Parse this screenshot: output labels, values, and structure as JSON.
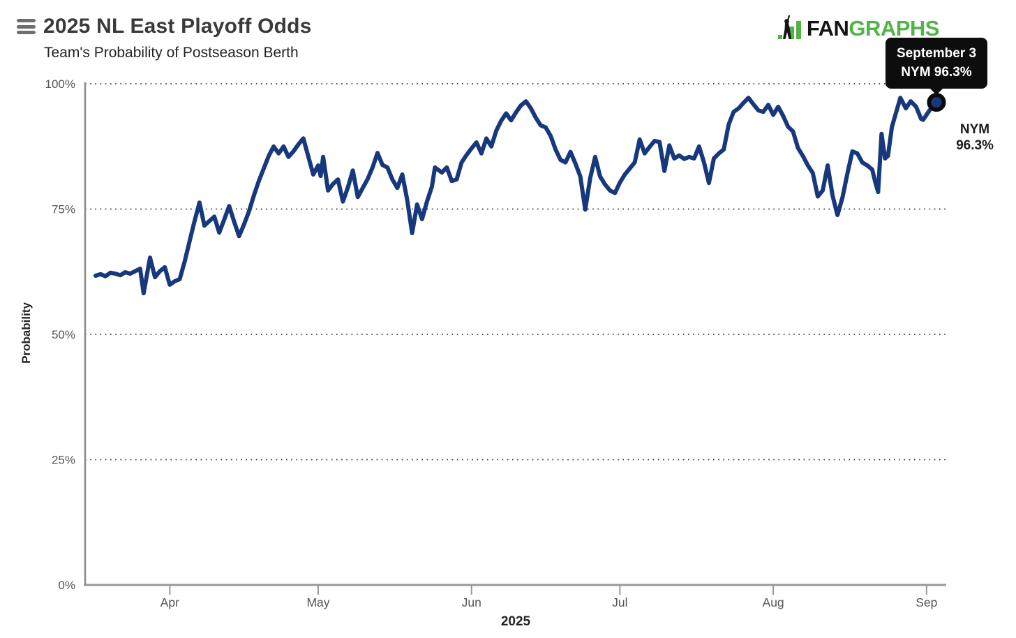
{
  "header": {
    "title": "2025 NL East Playoff Odds",
    "subtitle": "Team's Probability of Postseason Berth",
    "logo_fan": "FAN",
    "logo_graphs": "GRAPHS"
  },
  "tooltip": {
    "line1": "September 3",
    "line2": "NYM 96.3%"
  },
  "end_label": {
    "team": "NYM",
    "value": "96.3%"
  },
  "colors": {
    "line": "#17387d",
    "marker_ring": "#0a0a0a",
    "logo_green": "#52b447",
    "logo_black": "#151515",
    "grid_dots": "#333333",
    "x_axis": "#999999",
    "y_axis": "#8a8a8a",
    "tick_text": "#555555",
    "tooltip_bg": "#0d0d0d"
  },
  "chart_data": {
    "type": "line",
    "title": "2025 NL East Playoff Odds",
    "subtitle": "Team's Probability of Postseason Berth",
    "ylabel": "Probability",
    "xlabel": "2025",
    "ylim": [
      0,
      100
    ],
    "grid": "horizontal dotted at 25/50/75/100",
    "legend_position": "none",
    "y_ticks": [
      {
        "label": "0%",
        "value": 0
      },
      {
        "label": "25%",
        "value": 25
      },
      {
        "label": "50%",
        "value": 50
      },
      {
        "label": "75%",
        "value": 75
      },
      {
        "label": "100%",
        "value": 100
      }
    ],
    "x_ticks": [
      {
        "label": "Apr",
        "day": 15
      },
      {
        "label": "May",
        "day": 45
      },
      {
        "label": "Jun",
        "day": 76
      },
      {
        "label": "Jul",
        "day": 106
      },
      {
        "label": "Aug",
        "day": 137
      },
      {
        "label": "Sep",
        "day": 168
      }
    ],
    "x_domain_days": [
      0,
      170
    ],
    "series": [
      {
        "name": "NYM",
        "color": "#17387d",
        "last_point_label": "September 3",
        "last_value": 96.3,
        "points": [
          [
            0,
            61.7
          ],
          [
            1,
            62.0
          ],
          [
            2,
            61.6
          ],
          [
            3,
            62.3
          ],
          [
            4,
            62.1
          ],
          [
            5,
            61.8
          ],
          [
            6,
            62.4
          ],
          [
            7,
            62.1
          ],
          [
            8,
            62.6
          ],
          [
            9,
            63.1
          ],
          [
            9.7,
            58.2
          ],
          [
            11,
            65.3
          ],
          [
            12,
            61.4
          ],
          [
            13,
            62.6
          ],
          [
            14,
            63.4
          ],
          [
            15,
            59.9
          ],
          [
            16,
            60.6
          ],
          [
            17,
            61.0
          ],
          [
            18,
            64.5
          ],
          [
            19,
            68.6
          ],
          [
            20,
            72.6
          ],
          [
            21,
            76.3
          ],
          [
            22,
            71.7
          ],
          [
            23,
            72.6
          ],
          [
            24,
            73.5
          ],
          [
            25,
            70.3
          ],
          [
            26,
            72.9
          ],
          [
            27,
            75.6
          ],
          [
            28,
            72.5
          ],
          [
            29,
            69.6
          ],
          [
            30,
            71.9
          ],
          [
            31,
            74.5
          ],
          [
            32,
            77.7
          ],
          [
            33,
            80.6
          ],
          [
            34,
            83.1
          ],
          [
            35,
            85.6
          ],
          [
            36,
            87.5
          ],
          [
            37,
            86.1
          ],
          [
            38,
            87.5
          ],
          [
            39,
            85.4
          ],
          [
            40,
            86.5
          ],
          [
            41,
            87.9
          ],
          [
            42,
            89.1
          ],
          [
            43,
            85.5
          ],
          [
            44,
            81.9
          ],
          [
            45,
            83.7
          ],
          [
            45.5,
            81.6
          ],
          [
            46,
            85.4
          ],
          [
            47,
            78.7
          ],
          [
            48,
            80.0
          ],
          [
            49,
            80.9
          ],
          [
            50,
            76.5
          ],
          [
            51,
            79.3
          ],
          [
            52,
            82.7
          ],
          [
            53,
            77.4
          ],
          [
            54,
            79.2
          ],
          [
            55,
            81.0
          ],
          [
            56,
            83.3
          ],
          [
            57,
            86.2
          ],
          [
            58,
            83.8
          ],
          [
            59,
            83.3
          ],
          [
            60,
            80.9
          ],
          [
            61,
            79.2
          ],
          [
            62,
            81.9
          ],
          [
            63,
            76.8
          ],
          [
            64,
            70.2
          ],
          [
            65,
            75.9
          ],
          [
            66,
            73.0
          ],
          [
            67,
            76.5
          ],
          [
            68,
            79.5
          ],
          [
            68.6,
            83.3
          ],
          [
            70,
            82.3
          ],
          [
            71,
            83.3
          ],
          [
            72,
            80.6
          ],
          [
            73,
            80.9
          ],
          [
            74,
            84.3
          ],
          [
            75,
            85.8
          ],
          [
            76,
            87.1
          ],
          [
            77,
            88.3
          ],
          [
            78,
            86.1
          ],
          [
            79,
            89.1
          ],
          [
            80,
            87.5
          ],
          [
            81,
            90.6
          ],
          [
            82,
            92.6
          ],
          [
            83,
            94.1
          ],
          [
            84,
            92.7
          ],
          [
            85,
            94.3
          ],
          [
            86,
            95.7
          ],
          [
            87,
            96.5
          ],
          [
            88,
            95.1
          ],
          [
            89,
            93.2
          ],
          [
            90,
            91.7
          ],
          [
            91,
            91.3
          ],
          [
            92,
            89.6
          ],
          [
            93,
            86.9
          ],
          [
            94,
            84.8
          ],
          [
            95,
            84.3
          ],
          [
            96,
            86.4
          ],
          [
            97,
            84.1
          ],
          [
            98,
            81.5
          ],
          [
            99,
            74.9
          ],
          [
            100,
            81.2
          ],
          [
            101,
            85.4
          ],
          [
            102,
            81.5
          ],
          [
            103,
            79.9
          ],
          [
            104,
            78.7
          ],
          [
            105,
            78.2
          ],
          [
            106,
            80.3
          ],
          [
            107,
            81.9
          ],
          [
            108,
            83.1
          ],
          [
            109,
            84.3
          ],
          [
            110,
            88.9
          ],
          [
            111,
            86.1
          ],
          [
            112,
            87.4
          ],
          [
            113,
            88.6
          ],
          [
            114,
            88.4
          ],
          [
            115,
            82.6
          ],
          [
            116,
            87.7
          ],
          [
            117,
            85.1
          ],
          [
            118,
            85.7
          ],
          [
            119,
            85.0
          ],
          [
            120,
            85.4
          ],
          [
            121,
            85.1
          ],
          [
            122,
            87.5
          ],
          [
            123,
            84.3
          ],
          [
            124,
            80.2
          ],
          [
            125,
            85.1
          ],
          [
            126,
            86.1
          ],
          [
            127,
            86.9
          ],
          [
            128,
            91.9
          ],
          [
            129,
            94.4
          ],
          [
            130,
            95.1
          ],
          [
            131,
            96.2
          ],
          [
            132,
            97.2
          ],
          [
            133,
            95.9
          ],
          [
            134,
            94.7
          ],
          [
            135,
            94.4
          ],
          [
            136,
            95.8
          ],
          [
            137,
            93.8
          ],
          [
            138,
            95.4
          ],
          [
            139,
            93.6
          ],
          [
            140,
            91.4
          ],
          [
            141,
            90.5
          ],
          [
            142,
            87.2
          ],
          [
            143,
            85.6
          ],
          [
            144,
            83.7
          ],
          [
            145,
            82.2
          ],
          [
            146,
            77.5
          ],
          [
            147,
            78.7
          ],
          [
            148,
            83.7
          ],
          [
            149,
            77.7
          ],
          [
            150,
            73.8
          ],
          [
            151,
            77.3
          ],
          [
            152,
            82.1
          ],
          [
            153,
            86.5
          ],
          [
            154,
            86.1
          ],
          [
            155,
            84.3
          ],
          [
            156,
            83.7
          ],
          [
            157,
            82.9
          ],
          [
            157.6,
            80.5
          ],
          [
            158.2,
            78.4
          ],
          [
            158.9,
            90.0
          ],
          [
            159.6,
            85.1
          ],
          [
            160.2,
            85.6
          ],
          [
            161,
            91.4
          ],
          [
            162,
            94.8
          ],
          [
            162.7,
            97.2
          ],
          [
            163.8,
            95.1
          ],
          [
            164.8,
            96.5
          ],
          [
            165.9,
            95.4
          ],
          [
            166.9,
            93.0
          ],
          [
            167.3,
            92.8
          ],
          [
            168.6,
            94.7
          ],
          [
            170,
            96.3
          ]
        ]
      }
    ]
  }
}
